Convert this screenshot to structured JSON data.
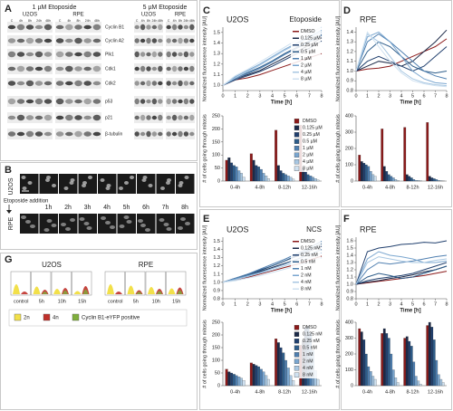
{
  "panels": {
    "A": {
      "letter": "A",
      "left_title": "1 µM Etoposide",
      "right_title": "5 µM Etoposide",
      "groups": [
        "U2OS",
        "RPE"
      ],
      "lanes": [
        "C",
        "4h",
        "8h",
        "24h",
        "48h"
      ],
      "rows": [
        "Cyclin B1",
        "Cyclin A2",
        "Plk1",
        "Cdk1",
        "Cdk2",
        "p53",
        "p21",
        "β-tubulin"
      ]
    },
    "B": {
      "letter": "B",
      "top_label": "U2OS",
      "bottom_label": "RPE",
      "event": "Etoposide addition",
      "times": [
        "1h",
        "2h",
        "3h",
        "4h",
        "5h",
        "6h",
        "7h",
        "8h"
      ]
    },
    "G": {
      "letter": "G",
      "groups": [
        "U2OS",
        "RPE"
      ],
      "times": [
        "control",
        "5h",
        "10h",
        "15h"
      ],
      "legend": [
        {
          "name": "2n",
          "color": "#f2e04a"
        },
        {
          "name": "4n",
          "color": "#c0302a"
        },
        {
          "name": "Cyclin B1-eYFP positive",
          "color": "#7fae3c"
        }
      ]
    }
  },
  "chart_data": [
    {
      "type": "line",
      "letter": "C",
      "title": "U2OS",
      "subtitle": "Etoposide",
      "legend": true,
      "ylabel": "Normalized fluorescence intensity [AU]",
      "xlabel": "Time [h]",
      "x": [
        0,
        1,
        2,
        3,
        4,
        5,
        6,
        7,
        8
      ],
      "xlim": [
        0,
        8
      ],
      "xticks": [
        0,
        1,
        2,
        3,
        4,
        5,
        6,
        7,
        8
      ],
      "ylim": [
        0.95,
        1.55
      ],
      "yticks": [
        {
          "value": 1,
          "label": "1.0"
        },
        1.1,
        1.2,
        1.3,
        1.4,
        1.5
      ],
      "series": [
        {
          "name": "DMSO",
          "color": "#8b1a1a",
          "values": [
            1.0,
            1.05,
            1.07,
            1.1,
            1.14,
            1.18,
            1.22,
            1.26,
            1.3
          ]
        },
        {
          "name": "0.125 µM",
          "color": "#1c2a48",
          "values": [
            1.0,
            1.06,
            1.1,
            1.14,
            1.2,
            1.26,
            1.32,
            1.38,
            1.45
          ]
        },
        {
          "name": "0.25 µM",
          "color": "#21406e",
          "values": [
            1.0,
            1.05,
            1.09,
            1.13,
            1.18,
            1.24,
            1.3,
            1.35,
            1.42
          ]
        },
        {
          "name": "0.5 µM",
          "color": "#2e5d8a",
          "values": [
            1.0,
            1.07,
            1.12,
            1.17,
            1.23,
            1.3,
            1.36,
            1.42,
            1.48
          ]
        },
        {
          "name": "1 µM",
          "color": "#4f7fb0",
          "values": [
            1.0,
            1.06,
            1.11,
            1.16,
            1.22,
            1.29,
            1.35,
            1.41,
            1.47
          ]
        },
        {
          "name": "2 µM",
          "color": "#7aa6cf",
          "values": [
            1.0,
            1.08,
            1.14,
            1.2,
            1.27,
            1.34,
            1.4,
            1.46,
            1.52
          ]
        },
        {
          "name": "4 µM",
          "color": "#a8c7e2",
          "values": [
            1.0,
            1.07,
            1.13,
            1.19,
            1.26,
            1.33,
            1.39,
            1.45,
            1.5
          ]
        },
        {
          "name": "8 µM",
          "color": "#cfe1f0",
          "values": [
            1.0,
            1.09,
            1.15,
            1.22,
            1.29,
            1.36,
            1.43,
            1.49,
            1.55
          ]
        }
      ]
    },
    {
      "type": "bar",
      "legend": true,
      "ylabel": "# of cells going through mitosis",
      "categories": [
        "0-4h",
        "4-8h",
        "8-12h",
        "12-16h"
      ],
      "ylim": [
        0,
        250
      ],
      "yticks": [
        0,
        50,
        100,
        150,
        200,
        250
      ],
      "series": [
        {
          "name": "DMSO",
          "color": "#8b1a1a",
          "values": [
            80,
            105,
            195,
            215
          ]
        },
        {
          "name": "0.125 µM",
          "color": "#1c2a48",
          "values": [
            90,
            80,
            60,
            50
          ]
        },
        {
          "name": "0.25 µM",
          "color": "#21406e",
          "values": [
            70,
            60,
            40,
            35
          ]
        },
        {
          "name": "0.5 µM",
          "color": "#2e5d8a",
          "values": [
            60,
            55,
            30,
            25
          ]
        },
        {
          "name": "1 µM",
          "color": "#4f7fb0",
          "values": [
            55,
            45,
            25,
            20
          ]
        },
        {
          "name": "2 µM",
          "color": "#7aa6cf",
          "values": [
            40,
            30,
            20,
            15
          ]
        },
        {
          "name": "4 µM",
          "color": "#a8c7e2",
          "values": [
            30,
            20,
            15,
            10
          ]
        },
        {
          "name": "8 µM",
          "color": "#cfe1f0",
          "values": [
            15,
            10,
            8,
            5
          ]
        }
      ]
    },
    {
      "type": "line",
      "letter": "D",
      "title": "RPE",
      "legend": false,
      "ylabel": "Normalized fluorescence intensity [AU]",
      "xlabel": "Time [h]",
      "x": [
        0,
        1,
        2,
        3,
        4,
        5,
        6,
        7,
        8
      ],
      "xlim": [
        0,
        8
      ],
      "xticks": [
        0,
        1,
        2,
        3,
        4,
        5,
        6,
        7,
        8
      ],
      "ylim": [
        0.8,
        1.45
      ],
      "yticks": [
        0.8,
        0.9,
        {
          "value": 1,
          "label": "1.0"
        },
        1.1,
        1.2,
        1.3,
        1.4
      ],
      "series": [
        {
          "color": "#8b1a1a",
          "values": [
            1.0,
            1.02,
            1.03,
            1.05,
            1.1,
            1.15,
            1.2,
            1.25,
            1.33
          ]
        },
        {
          "color": "#1c2a48",
          "values": [
            1.0,
            1.05,
            1.1,
            1.08,
            1.05,
            1.1,
            1.2,
            1.3,
            1.42
          ]
        },
        {
          "color": "#21406e",
          "values": [
            1.0,
            1.1,
            1.15,
            1.1,
            1.05,
            1.0,
            1.05,
            1.15,
            1.25
          ]
        },
        {
          "color": "#2e5d8a",
          "values": [
            1.0,
            1.2,
            1.3,
            1.25,
            1.15,
            1.05,
            1.0,
            0.98,
            1.0
          ]
        },
        {
          "color": "#4f7fb0",
          "values": [
            1.0,
            1.3,
            1.38,
            1.3,
            1.2,
            1.1,
            1.0,
            0.95,
            0.92
          ]
        },
        {
          "color": "#7aa6cf",
          "values": [
            1.0,
            1.35,
            1.4,
            1.3,
            1.15,
            1.0,
            0.92,
            0.88,
            0.87
          ]
        },
        {
          "color": "#a8c7e2",
          "values": [
            1.0,
            1.38,
            1.3,
            1.15,
            1.0,
            0.92,
            0.88,
            0.86,
            0.85
          ]
        },
        {
          "color": "#cfe1f0",
          "values": [
            1.0,
            1.4,
            1.25,
            1.1,
            0.98,
            0.9,
            0.87,
            0.85,
            0.84
          ]
        }
      ]
    },
    {
      "type": "bar",
      "legend": false,
      "ylabel": "# of cells going through mitosis",
      "categories": [
        "0-4h",
        "4-8h",
        "8-12h",
        "12-16h"
      ],
      "ylim": [
        0,
        400
      ],
      "yticks": [
        0,
        100,
        200,
        300,
        400
      ],
      "series": [
        {
          "color": "#8b1a1a",
          "values": [
            160,
            320,
            330,
            360
          ]
        },
        {
          "color": "#1c2a48",
          "values": [
            120,
            90,
            40,
            30
          ]
        },
        {
          "color": "#21406e",
          "values": [
            110,
            60,
            30,
            20
          ]
        },
        {
          "color": "#2e5d8a",
          "values": [
            100,
            40,
            20,
            15
          ]
        },
        {
          "color": "#4f7fb0",
          "values": [
            90,
            30,
            10,
            10
          ]
        },
        {
          "color": "#7aa6cf",
          "values": [
            60,
            20,
            5,
            5
          ]
        },
        {
          "color": "#a8c7e2",
          "values": [
            40,
            10,
            5,
            3
          ]
        },
        {
          "color": "#cfe1f0",
          "values": [
            30,
            5,
            3,
            2
          ]
        }
      ]
    },
    {
      "type": "line",
      "letter": "E",
      "title": "U2OS",
      "subtitle": "NCS",
      "legend": true,
      "ylabel": "Normalized fluorescence intensity [AU]",
      "xlabel": "Time [h]",
      "x": [
        0,
        1,
        2,
        3,
        4,
        5,
        6,
        7,
        8
      ],
      "xlim": [
        0,
        8
      ],
      "xticks": [
        0,
        1,
        2,
        3,
        4,
        5,
        6,
        7,
        8
      ],
      "ylim": [
        0.8,
        1.55
      ],
      "yticks": [
        0.8,
        0.9,
        {
          "value": 1,
          "label": "1.0"
        },
        1.1,
        1.2,
        1.3,
        1.4,
        1.5
      ],
      "series": [
        {
          "name": "DMSO",
          "color": "#8b1a1a",
          "values": [
            1.0,
            1.03,
            1.06,
            1.1,
            1.14,
            1.18,
            1.22,
            1.27,
            1.32
          ]
        },
        {
          "name": "0.125 nM",
          "color": "#1c2a48",
          "values": [
            1.0,
            1.04,
            1.08,
            1.13,
            1.18,
            1.23,
            1.28,
            1.34,
            1.4
          ]
        },
        {
          "name": "0.25 nM",
          "color": "#21406e",
          "values": [
            1.0,
            1.05,
            1.1,
            1.15,
            1.2,
            1.26,
            1.32,
            1.38,
            1.44
          ]
        },
        {
          "name": "0.5 nM",
          "color": "#2e5d8a",
          "values": [
            1.0,
            1.04,
            1.09,
            1.14,
            1.2,
            1.26,
            1.33,
            1.4,
            1.47
          ]
        },
        {
          "name": "1 nM",
          "color": "#4f7fb0",
          "values": [
            1.0,
            1.05,
            1.1,
            1.16,
            1.22,
            1.28,
            1.35,
            1.42,
            1.5
          ]
        },
        {
          "name": "2 nM",
          "color": "#7aa6cf",
          "values": [
            1.0,
            1.04,
            1.08,
            1.12,
            1.17,
            1.22,
            1.28,
            1.34,
            1.4
          ]
        },
        {
          "name": "4 nM",
          "color": "#a8c7e2",
          "values": [
            1.0,
            1.03,
            1.07,
            1.11,
            1.15,
            1.2,
            1.25,
            1.3,
            1.36
          ]
        },
        {
          "name": "8 nM",
          "color": "#cfe1f0",
          "values": [
            1.0,
            1.02,
            1.05,
            1.08,
            1.12,
            1.16,
            1.2,
            1.25,
            1.3
          ]
        }
      ]
    },
    {
      "type": "bar",
      "legend": true,
      "ylabel": "# of cells going through mitosis",
      "categories": [
        "0-4h",
        "4-8h",
        "8-12h",
        "12-16h"
      ],
      "ylim": [
        0,
        250
      ],
      "yticks": [
        0,
        50,
        100,
        150,
        200,
        250
      ],
      "series": [
        {
          "name": "DMSO",
          "color": "#8b1a1a",
          "values": [
            65,
            90,
            185,
            160
          ]
        },
        {
          "name": "0.125 nM",
          "color": "#1c2a48",
          "values": [
            55,
            85,
            170,
            180
          ]
        },
        {
          "name": "0.25 nM",
          "color": "#21406e",
          "values": [
            50,
            80,
            150,
            230
          ]
        },
        {
          "name": "0.5 nM",
          "color": "#2e5d8a",
          "values": [
            45,
            75,
            130,
            235
          ]
        },
        {
          "name": "1 nM",
          "color": "#4f7fb0",
          "values": [
            40,
            65,
            100,
            210
          ]
        },
        {
          "name": "2 nM",
          "color": "#7aa6cf",
          "values": [
            35,
            55,
            70,
            140
          ]
        },
        {
          "name": "4 nM",
          "color": "#a8c7e2",
          "values": [
            30,
            40,
            40,
            60
          ]
        },
        {
          "name": "8 nM",
          "color": "#cfe1f0",
          "values": [
            20,
            25,
            20,
            25
          ]
        }
      ]
    },
    {
      "type": "line",
      "letter": "F",
      "title": "RPE",
      "legend": false,
      "ylabel": "Normalized fluorescence intensity [AU]",
      "xlabel": "Time [h]",
      "x": [
        0,
        1,
        2,
        3,
        4,
        5,
        6,
        7,
        8
      ],
      "xlim": [
        0,
        8
      ],
      "xticks": [
        0,
        1,
        2,
        3,
        4,
        5,
        6,
        7,
        8
      ],
      "ylim": [
        0.8,
        1.65
      ],
      "yticks": [
        0.8,
        0.9,
        {
          "value": 1,
          "label": "1.0"
        },
        1.1,
        1.2,
        1.3,
        1.4,
        1.5,
        1.6
      ],
      "series": [
        {
          "color": "#8b1a1a",
          "values": [
            1.0,
            1.02,
            1.04,
            1.06,
            1.08,
            1.1,
            1.12,
            1.15,
            1.18
          ]
        },
        {
          "color": "#1c2a48",
          "values": [
            1.0,
            1.03,
            1.05,
            1.08,
            1.1,
            1.13,
            1.17,
            1.2,
            1.25
          ]
        },
        {
          "color": "#21406e",
          "values": [
            1.0,
            1.05,
            1.08,
            1.1,
            1.12,
            1.15,
            1.2,
            1.25,
            1.3
          ]
        },
        {
          "color": "#2e5d8a",
          "values": [
            1.0,
            1.1,
            1.15,
            1.12,
            1.08,
            1.1,
            1.15,
            1.2,
            1.25
          ]
        },
        {
          "color": "#4f7fb0",
          "values": [
            1.0,
            1.2,
            1.3,
            1.28,
            1.3,
            1.32,
            1.35,
            1.38,
            1.4
          ]
        },
        {
          "color": "#7aa6cf",
          "values": [
            1.0,
            1.35,
            1.45,
            1.4,
            1.38,
            1.35,
            1.3,
            1.3,
            1.32
          ]
        },
        {
          "color": "#21406e",
          "values": [
            1.0,
            1.45,
            1.5,
            1.52,
            1.55,
            1.56,
            1.58,
            1.57,
            1.6
          ]
        },
        {
          "color": "#a8c7e2",
          "values": [
            1.0,
            1.3,
            1.38,
            1.35,
            1.32,
            1.3,
            1.3,
            1.33,
            1.35
          ]
        }
      ]
    },
    {
      "type": "bar",
      "legend": false,
      "ylabel": "# of cells going through mitosis",
      "categories": [
        "0-4h",
        "4-8h",
        "8-12h",
        "12-16h"
      ],
      "ylim": [
        0,
        400
      ],
      "yticks": [
        0,
        100,
        200,
        300,
        400
      ],
      "series": [
        {
          "color": "#8b1a1a",
          "values": [
            360,
            330,
            300,
            380
          ]
        },
        {
          "color": "#1c2a48",
          "values": [
            340,
            360,
            310,
            400
          ]
        },
        {
          "color": "#21406e",
          "values": [
            290,
            330,
            280,
            370
          ]
        },
        {
          "color": "#2e5d8a",
          "values": [
            200,
            300,
            250,
            290
          ]
        },
        {
          "color": "#4f7fb0",
          "values": [
            120,
            200,
            150,
            160
          ]
        },
        {
          "color": "#7aa6cf",
          "values": [
            90,
            100,
            60,
            70
          ]
        },
        {
          "color": "#a8c7e2",
          "values": [
            60,
            50,
            30,
            40
          ]
        },
        {
          "color": "#cfe1f0",
          "values": [
            40,
            20,
            10,
            20
          ]
        }
      ]
    }
  ]
}
